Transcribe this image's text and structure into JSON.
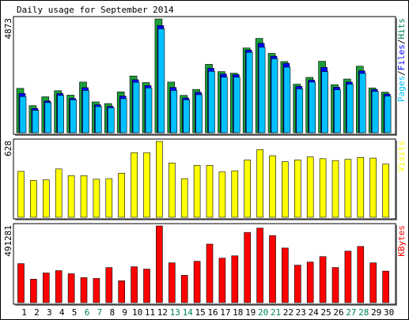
{
  "colors": {
    "hits": "#00805c",
    "hits_display": "#1c9e3a",
    "files": "#0000ff",
    "pages": "#00c0ff",
    "visits": "#ffff00",
    "kbytes": "#ff0000",
    "weekend": "#00805c",
    "weekday": "#000000",
    "panel_bg": "#ffffff",
    "shadow": "#808080"
  },
  "chart_data": {
    "title": "Daily usage for September 2014",
    "type": "bar",
    "categories": [
      "1",
      "2",
      "3",
      "4",
      "5",
      "6",
      "7",
      "8",
      "9",
      "10",
      "11",
      "12",
      "13",
      "14",
      "15",
      "16",
      "17",
      "18",
      "19",
      "20",
      "21",
      "22",
      "23",
      "24",
      "25",
      "26",
      "27",
      "28",
      "29",
      "30"
    ],
    "weekend_days": [
      "6",
      "7",
      "13",
      "14",
      "20",
      "21",
      "27",
      "28"
    ],
    "panels": [
      {
        "id": "hits",
        "max_label": "4873",
        "legend": [
          {
            "text": "Pages",
            "color": "#00c0ff"
          },
          {
            "text": "/",
            "color": "#000000"
          },
          {
            "text": "Files",
            "color": "#0000ff"
          },
          {
            "text": "/",
            "color": "#000000"
          },
          {
            "text": "Hits",
            "color": "#00805c"
          }
        ],
        "ylim": [
          0,
          4873
        ],
        "series": [
          {
            "name": "Hits",
            "values": [
              1900,
              1160,
              1540,
              1800,
              1610,
              2170,
              1320,
              1250,
              1750,
              2430,
              2150,
              4873,
              2170,
              1600,
              1850,
              2930,
              2620,
              2550,
              3630,
              4040,
              3400,
              3050,
              2080,
              2370,
              3060,
              2060,
              2300,
              2850,
              1920,
              1740
            ]
          },
          {
            "name": "Files",
            "values": [
              1680,
              1040,
              1360,
              1680,
              1470,
              1930,
              1200,
              1130,
              1570,
              2270,
              2020,
              4590,
              1940,
              1490,
              1730,
              2760,
              2510,
              2490,
              3540,
              3830,
              3280,
              2970,
              1990,
              2260,
              2800,
              1950,
              2170,
              2650,
              1850,
              1660
            ]
          },
          {
            "name": "Pages",
            "values": [
              1550,
              960,
              1290,
              1600,
              1410,
              1810,
              1120,
              1070,
              1460,
              2160,
              1920,
              4450,
              1810,
              1410,
              1630,
              2630,
              2380,
              2380,
              3440,
              3660,
              3170,
              2810,
              1880,
              2170,
              2620,
              1840,
              2080,
              2540,
              1770,
              1570
            ]
          }
        ]
      },
      {
        "id": "visits",
        "max_label": "628",
        "legend": [
          {
            "text": "Visits",
            "color": "#ffff00"
          }
        ],
        "ylim": [
          0,
          628
        ],
        "series": [
          {
            "name": "Visits",
            "values": [
              380,
              305,
              310,
              400,
              345,
              345,
              315,
              320,
              365,
              535,
              535,
              628,
              450,
              320,
              430,
              430,
              375,
              385,
              475,
              560,
              510,
              460,
              475,
              500,
              485,
              470,
              480,
              495,
              490,
              440
            ]
          }
        ]
      },
      {
        "id": "kbytes",
        "max_label": "491281",
        "legend": [
          {
            "text": "KBytes",
            "color": "#ff0000"
          }
        ],
        "ylim": [
          0,
          491281
        ],
        "series": [
          {
            "name": "KBytes",
            "values": [
              250000,
              150000,
              190000,
              205000,
              185000,
              160000,
              155000,
              225000,
              140000,
              230000,
              215000,
              491281,
              255000,
              175000,
              265000,
              375000,
              285000,
              300000,
              450000,
              478000,
              430000,
              350000,
              240000,
              260000,
              295000,
              225000,
              330000,
              360000,
              255000,
              202000
            ]
          }
        ]
      }
    ]
  }
}
